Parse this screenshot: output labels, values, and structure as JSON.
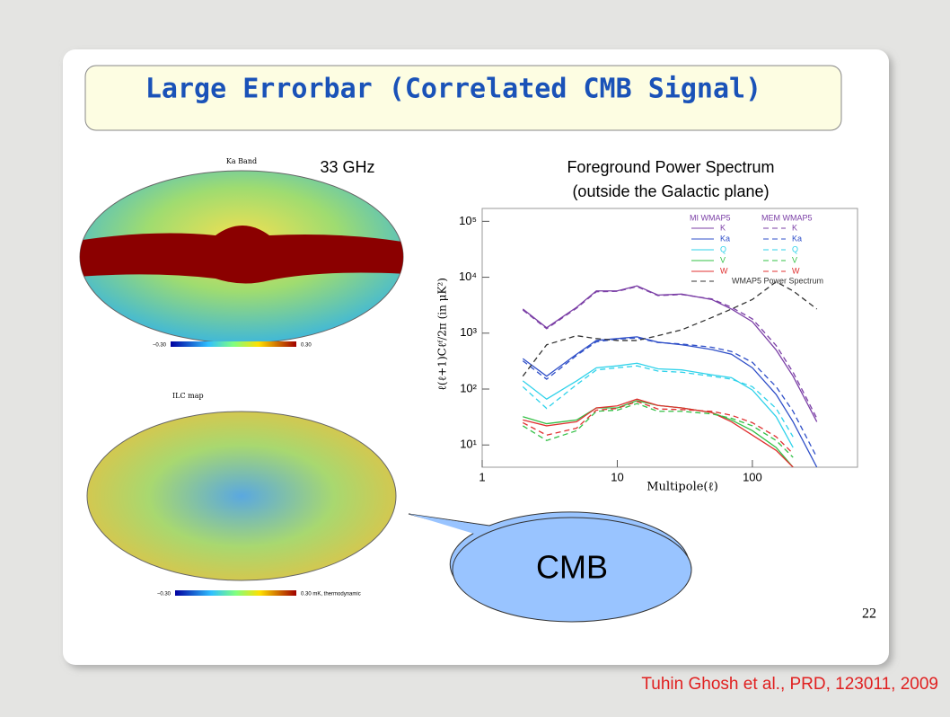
{
  "slide": {
    "title": "Large Errorbar (Correlated CMB Signal)",
    "band_label": "33 GHz",
    "spectrum_title": [
      "Foreground Power Spectrum",
      "(outside the Galactic plane)"
    ],
    "callout": "CMB",
    "page_number": "22",
    "citation": "Tuhin Ghosh et al., PRD, 123011, 2009"
  },
  "maps": [
    {
      "title": "Ka Band",
      "scale_min": "−0.30",
      "scale_max": "0.30"
    },
    {
      "title": "ILC map",
      "scale_min": "−0.30",
      "scale_max": "0.30 mK, thermodynamic"
    }
  ],
  "chart_data": {
    "type": "line",
    "xlabel": "Multipole(ℓ)",
    "ylabel": "ℓ(ℓ+1)Cℓᶠ/2π (in μK²)",
    "xscale": "log",
    "yscale": "log",
    "x": [
      2,
      3,
      5,
      7,
      10,
      14,
      20,
      30,
      50,
      70,
      100,
      150,
      200,
      300
    ],
    "xlim": [
      1,
      600
    ],
    "ylim": [
      4,
      170000
    ],
    "xticks": [
      1,
      10,
      100
    ],
    "yticks": [
      {
        "value": 10,
        "label": "10¹"
      },
      {
        "value": 100,
        "label": "10²"
      },
      {
        "value": 1000,
        "label": "10³"
      },
      {
        "value": 10000,
        "label": "10⁴"
      },
      {
        "value": 100000,
        "label": "10⁵"
      }
    ],
    "legend_headers": [
      "MI WMAP5",
      "MEM WMAP5"
    ],
    "series": [
      {
        "name": "K",
        "color": "#7b3fa6",
        "style": "solid",
        "values": [
          2700,
          1250,
          2900,
          5700,
          5700,
          7000,
          4800,
          5000,
          4000,
          2700,
          1600,
          500,
          170,
          26
        ]
      },
      {
        "name": "Ka",
        "color": "#2f4fc8",
        "style": "solid",
        "values": [
          350,
          170,
          420,
          740,
          800,
          860,
          690,
          620,
          510,
          420,
          240,
          80,
          26,
          4
        ]
      },
      {
        "name": "Q",
        "color": "#2fd2ea",
        "style": "solid",
        "values": [
          140,
          66,
          140,
          240,
          260,
          290,
          230,
          220,
          180,
          160,
          96,
          32,
          9,
          null
        ]
      },
      {
        "name": "V",
        "color": "#33c046",
        "style": "solid",
        "values": [
          32,
          24,
          28,
          46,
          46,
          62,
          51,
          46,
          38,
          28,
          18,
          9,
          4,
          null
        ]
      },
      {
        "name": "W",
        "color": "#e03030",
        "style": "solid",
        "values": [
          28,
          22,
          26,
          46,
          50,
          66,
          51,
          46,
          38,
          26,
          15,
          8,
          4,
          null
        ]
      },
      {
        "name": "K",
        "color": "#7b3fa6",
        "style": "dashed",
        "values": [
          2600,
          1200,
          2800,
          5500,
          5600,
          6800,
          4700,
          4900,
          4100,
          2900,
          1800,
          600,
          200,
          30
        ]
      },
      {
        "name": "Ka",
        "color": "#2f4fc8",
        "style": "dashed",
        "values": [
          320,
          150,
          400,
          700,
          780,
          820,
          680,
          640,
          560,
          470,
          300,
          110,
          40,
          6
        ]
      },
      {
        "name": "Q",
        "color": "#2fd2ea",
        "style": "dashed",
        "values": [
          110,
          45,
          120,
          220,
          240,
          260,
          210,
          200,
          170,
          150,
          110,
          45,
          14,
          null
        ]
      },
      {
        "name": "V",
        "color": "#33c046",
        "style": "dashed",
        "values": [
          22,
          12,
          18,
          40,
          42,
          55,
          40,
          40,
          36,
          30,
          22,
          12,
          6,
          null
        ]
      },
      {
        "name": "W",
        "color": "#e03030",
        "style": "dashed",
        "values": [
          25,
          15,
          20,
          42,
          45,
          60,
          44,
          43,
          40,
          34,
          25,
          14,
          7,
          null
        ]
      },
      {
        "name": "WMAP5 Power Spectrum",
        "color": "#333333",
        "style": "dashed",
        "values": [
          170,
          620,
          900,
          800,
          740,
          740,
          900,
          1150,
          1900,
          2700,
          4000,
          8300,
          5700,
          2700
        ]
      }
    ]
  }
}
